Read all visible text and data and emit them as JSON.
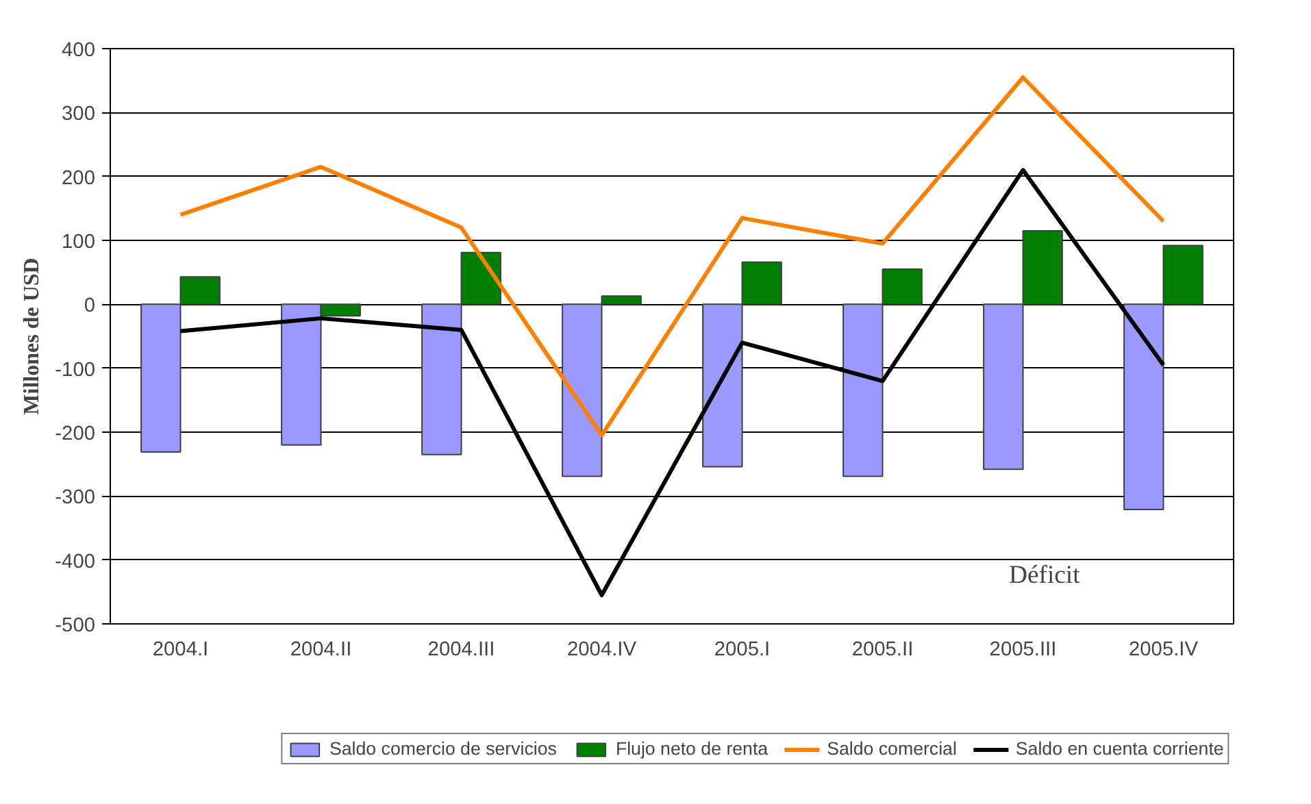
{
  "chart_data": {
    "type": "bar",
    "ylabel": "Millones de USD",
    "categories": [
      "2004.I",
      "2004.II",
      "2004.III",
      "2004.IV",
      "2005.I",
      "2005.II",
      "2005.III",
      "2005.IV"
    ],
    "series": [
      {
        "name": "Saldo comercio de servicios",
        "color": "#9999ff",
        "values": [
          -231,
          -220,
          -235,
          -269,
          -254,
          -269,
          -258,
          -321
        ]
      },
      {
        "name": "Flujo neto de renta",
        "color": "#008000",
        "values": [
          43,
          -18,
          81,
          13,
          66,
          55,
          115,
          92
        ]
      },
      {
        "name": "Saldo comercial",
        "type": "line",
        "color": "#ff7f00",
        "values": [
          140,
          215,
          120,
          -205,
          135,
          95,
          355,
          130
        ]
      },
      {
        "name": "Saldo en cuenta corriente",
        "type": "line",
        "color": "#000000",
        "values": [
          -42,
          -22,
          -40,
          -455,
          -60,
          -120,
          210,
          -95
        ]
      }
    ],
    "ylim": [
      -500,
      400
    ],
    "yticks": [
      -500,
      -400,
      -300,
      -200,
      -100,
      0,
      100,
      200,
      300,
      400
    ],
    "grid": "y",
    "legend": "bottom",
    "marker": "none",
    "line_style": "solid",
    "annotations": [
      "Déficit"
    ]
  }
}
